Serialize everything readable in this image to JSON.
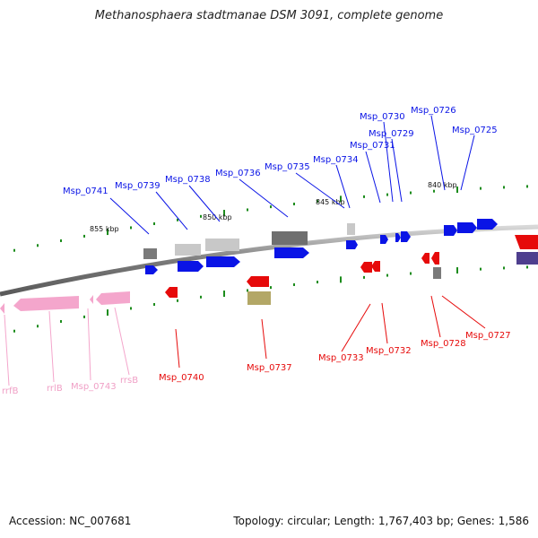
{
  "title": "Methanosphaera stadtmanae DSM 3091, complete genome",
  "footer": {
    "accession": "Accession: NC_007681",
    "summary": "Topology: circular; Length: 1,767,403 bp; Genes: 1,586"
  },
  "colors": {
    "forward_gene": "#0a14e6",
    "reverse_gene": "#e60a0a",
    "rna": "#f4a6cc",
    "gray": "#8c8c8c",
    "light_gray": "#c8c8c8",
    "olive": "#b3a766",
    "tick": "#1c8c1c"
  },
  "scale": {
    "labels": [
      "855 kbp",
      "850 kbp",
      "845 kbp",
      "840 kbp"
    ]
  },
  "labels": {
    "forward": [
      "Msp_0741",
      "Msp_0739",
      "Msp_0738",
      "Msp_0736",
      "Msp_0735",
      "Msp_0734",
      "Msp_0731",
      "Msp_0730",
      "Msp_0729",
      "Msp_0726",
      "Msp_0725"
    ],
    "reverse": [
      "Msp_0740",
      "Msp_0737",
      "Msp_0733",
      "Msp_0732",
      "Msp_0728",
      "Msp_0727"
    ],
    "rna": [
      "rrfB",
      "rrlB",
      "Msp_0743",
      "rrsB"
    ]
  }
}
